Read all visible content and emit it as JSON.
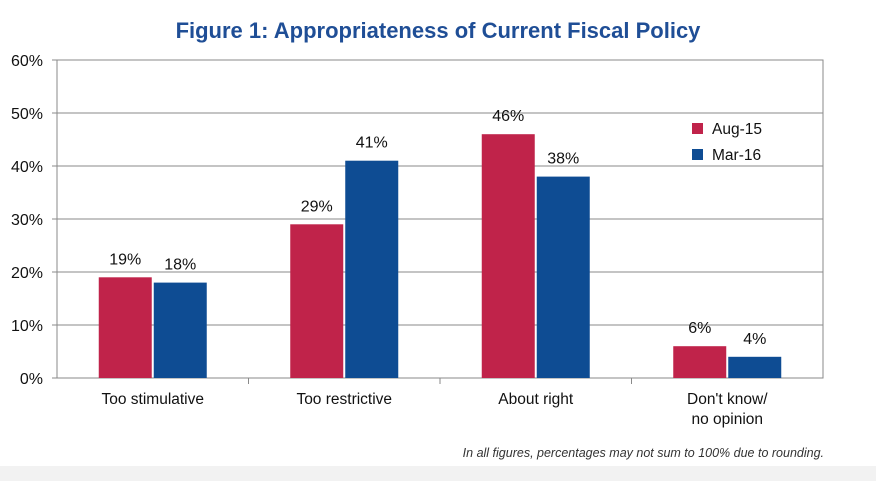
{
  "chart_data": {
    "type": "bar",
    "title": "Figure 1: Appropriateness of Current Fiscal Policy",
    "categories": [
      "Too stimulative",
      "Too restrictive",
      "About right",
      "Don't know/\nno opinion"
    ],
    "series": [
      {
        "name": "Aug-15",
        "values": [
          19,
          29,
          46,
          6
        ],
        "labels": [
          "19%",
          "29%",
          "46%",
          "6%"
        ],
        "color": "#c0234a"
      },
      {
        "name": "Mar-16",
        "values": [
          18,
          41,
          38,
          4
        ],
        "labels": [
          "18%",
          "41%",
          "38%",
          "4%"
        ],
        "color": "#0e4c93"
      }
    ],
    "yticks": [
      "0%",
      "10%",
      "20%",
      "30%",
      "40%",
      "50%",
      "60%"
    ],
    "ylim": [
      0,
      60
    ],
    "grid": true,
    "legend_position": "top-right",
    "note": "In all figures, percentages may not sum to 100% due to rounding."
  }
}
